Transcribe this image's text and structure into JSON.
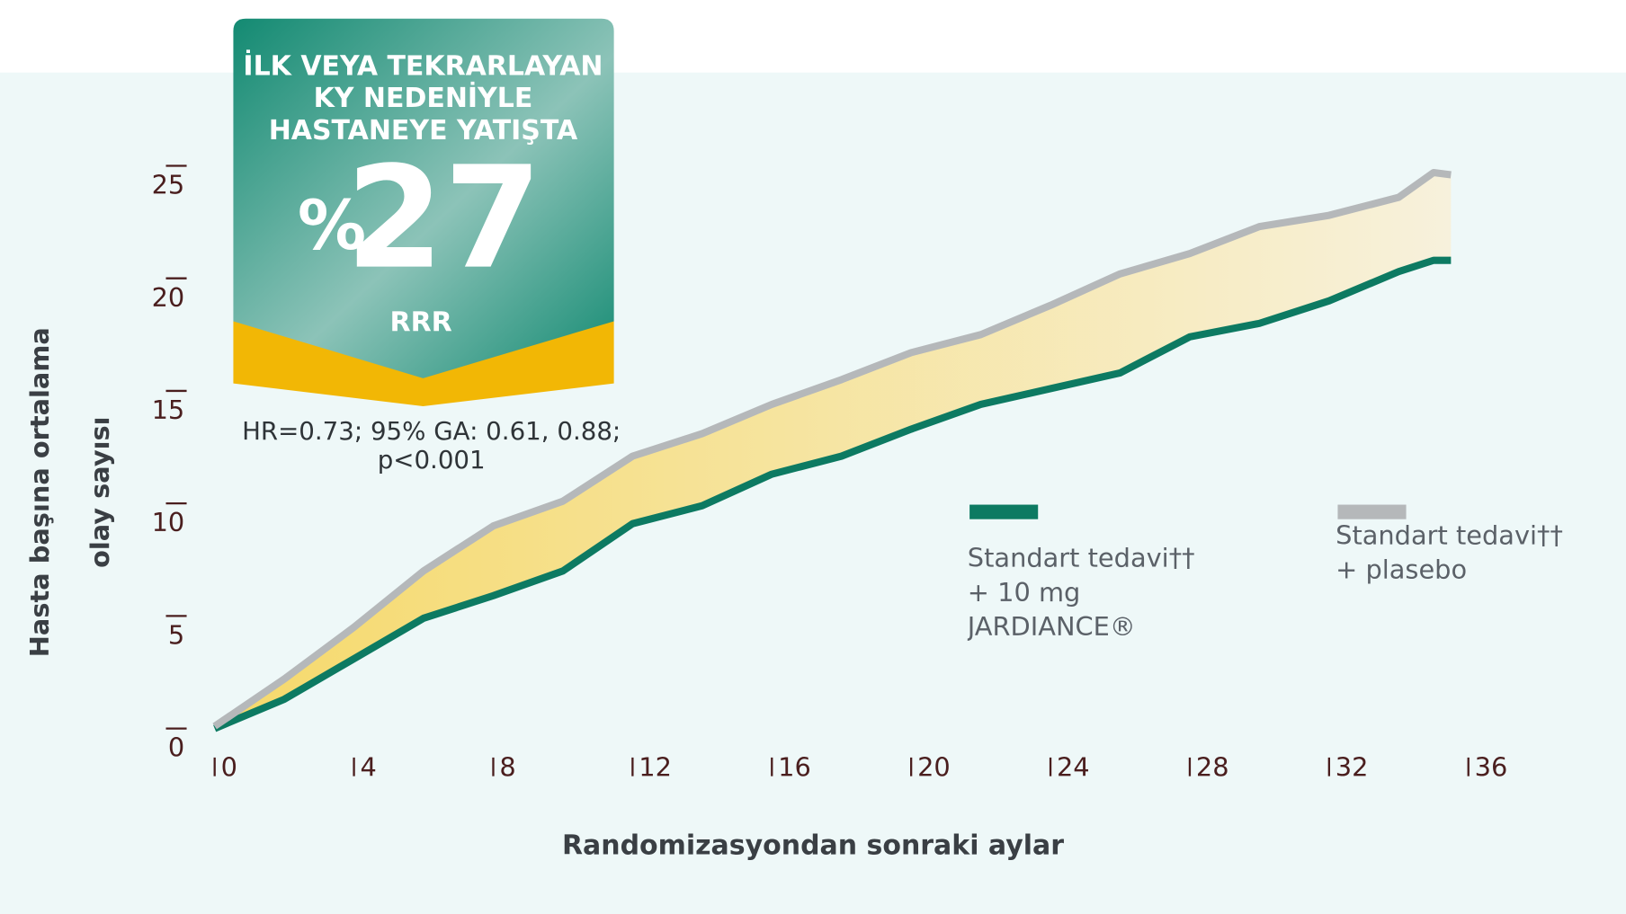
{
  "chart_data": {
    "type": "line",
    "x_label": "Randomizasyondan sonraki aylar",
    "y_label_lines": [
      "Hasta başına ortalama",
      "olay sayısı"
    ],
    "xlim": [
      0,
      36
    ],
    "xticks": [
      0,
      4,
      8,
      12,
      16,
      20,
      24,
      28,
      32,
      36
    ],
    "ylim": [
      0,
      25
    ],
    "yticks": [
      0,
      5,
      10,
      15,
      20,
      25
    ],
    "series": [
      {
        "name": "Standart tedavi††\n+ 10 mg JARDIANCE®",
        "color": "#0d7a62",
        "x": [
          0,
          2,
          4,
          6,
          8,
          10,
          12,
          14,
          16,
          18,
          20,
          22,
          24,
          26,
          28,
          30,
          32,
          34,
          35,
          35.5
        ],
        "values": [
          0,
          1.3,
          3.1,
          4.9,
          5.9,
          7.0,
          9.1,
          9.9,
          11.3,
          12.1,
          13.3,
          14.4,
          15.1,
          15.8,
          17.4,
          18.0,
          19.0,
          20.3,
          20.8,
          20.8
        ]
      },
      {
        "name": "Standart tedavi††\n+ plasebo",
        "color": "#b5b8ba",
        "x": [
          0,
          2,
          4,
          6,
          8,
          10,
          12,
          14,
          16,
          18,
          20,
          22,
          24,
          26,
          28,
          30,
          32,
          34,
          35,
          35.5
        ],
        "values": [
          0.1,
          2.2,
          4.5,
          7.0,
          9.0,
          10.1,
          12.1,
          13.1,
          14.4,
          15.5,
          16.7,
          17.5,
          18.8,
          20.2,
          21.1,
          22.3,
          22.8,
          23.6,
          24.7,
          24.6
        ]
      }
    ]
  },
  "badge": {
    "lines": [
      "İLK VEYA TEKRARLAYAN",
      "KY NEDENİYLE",
      "HASTANEYE YATIŞTA"
    ],
    "prefix": "%",
    "value": "27",
    "unit": "RRR",
    "stats": [
      "HR=0.73; 95% GA: 0.61, 0.88;",
      "p<0.001"
    ]
  }
}
